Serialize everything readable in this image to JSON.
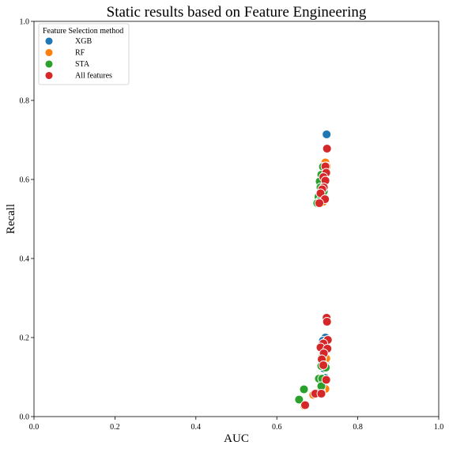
{
  "chart_data": {
    "type": "scatter",
    "title": "Static results based on Feature Engineering",
    "xlabel": "AUC",
    "ylabel": "Recall",
    "xlim": [
      0.0,
      1.0
    ],
    "ylim": [
      0.0,
      1.0
    ],
    "xticks": [
      "0.0",
      "0.2",
      "0.4",
      "0.6",
      "0.8",
      "1.0"
    ],
    "yticks": [
      "0.0",
      "0.2",
      "0.4",
      "0.6",
      "0.8",
      "1.0"
    ],
    "grid": false,
    "legend": {
      "title": "Feature Selection method",
      "placement": "top-left",
      "entries": [
        "XGB",
        "RF",
        "STA",
        "All features"
      ]
    },
    "series": [
      {
        "name": "XGB",
        "color": "#1f77b4",
        "points": [
          [
            0.723,
            0.714
          ],
          [
            0.72,
            0.632
          ],
          [
            0.718,
            0.615
          ],
          [
            0.716,
            0.601
          ],
          [
            0.714,
            0.59
          ],
          [
            0.712,
            0.578
          ],
          [
            0.709,
            0.566
          ],
          [
            0.718,
            0.548
          ],
          [
            0.72,
            0.2
          ],
          [
            0.714,
            0.192
          ],
          [
            0.71,
            0.18
          ],
          [
            0.718,
            0.165
          ],
          [
            0.712,
            0.15
          ],
          [
            0.72,
            0.135
          ],
          [
            0.716,
            0.122
          ],
          [
            0.719,
            0.098
          ],
          [
            0.714,
            0.09
          ],
          [
            0.712,
            0.076
          ]
        ]
      },
      {
        "name": "RF",
        "color": "#ff7f0e",
        "points": [
          [
            0.72,
            0.643
          ],
          [
            0.723,
            0.633
          ],
          [
            0.719,
            0.618
          ],
          [
            0.716,
            0.608
          ],
          [
            0.713,
            0.588
          ],
          [
            0.71,
            0.571
          ],
          [
            0.707,
            0.556
          ],
          [
            0.714,
            0.543
          ],
          [
            0.722,
            0.19
          ],
          [
            0.718,
            0.181
          ],
          [
            0.722,
            0.147
          ],
          [
            0.714,
            0.133
          ],
          [
            0.721,
            0.127
          ],
          [
            0.712,
            0.095
          ],
          [
            0.72,
            0.07
          ],
          [
            0.709,
            0.065
          ],
          [
            0.69,
            0.055
          ],
          [
            0.668,
            0.027
          ]
        ]
      },
      {
        "name": "STA",
        "color": "#2ca02c",
        "points": [
          [
            0.714,
            0.632
          ],
          [
            0.71,
            0.612
          ],
          [
            0.706,
            0.595
          ],
          [
            0.708,
            0.58
          ],
          [
            0.703,
            0.556
          ],
          [
            0.706,
            0.545
          ],
          [
            0.7,
            0.54
          ],
          [
            0.716,
            0.57
          ],
          [
            0.714,
            0.167
          ],
          [
            0.712,
            0.15
          ],
          [
            0.71,
            0.128
          ],
          [
            0.721,
            0.124
          ],
          [
            0.704,
            0.096
          ],
          [
            0.712,
            0.096
          ],
          [
            0.71,
            0.077
          ],
          [
            0.667,
            0.069
          ],
          [
            0.655,
            0.043
          ]
        ]
      },
      {
        "name": "All features",
        "color": "#d62728",
        "points": [
          [
            0.724,
            0.678
          ],
          [
            0.72,
            0.633
          ],
          [
            0.722,
            0.617
          ],
          [
            0.715,
            0.606
          ],
          [
            0.72,
            0.597
          ],
          [
            0.716,
            0.58
          ],
          [
            0.712,
            0.575
          ],
          [
            0.708,
            0.565
          ],
          [
            0.719,
            0.55
          ],
          [
            0.705,
            0.54
          ],
          [
            0.723,
            0.25
          ],
          [
            0.724,
            0.24
          ],
          [
            0.726,
            0.194
          ],
          [
            0.715,
            0.185
          ],
          [
            0.708,
            0.175
          ],
          [
            0.725,
            0.172
          ],
          [
            0.716,
            0.16
          ],
          [
            0.711,
            0.145
          ],
          [
            0.715,
            0.13
          ],
          [
            0.722,
            0.093
          ],
          [
            0.695,
            0.058
          ],
          [
            0.71,
            0.058
          ],
          [
            0.67,
            0.029
          ]
        ]
      }
    ]
  }
}
